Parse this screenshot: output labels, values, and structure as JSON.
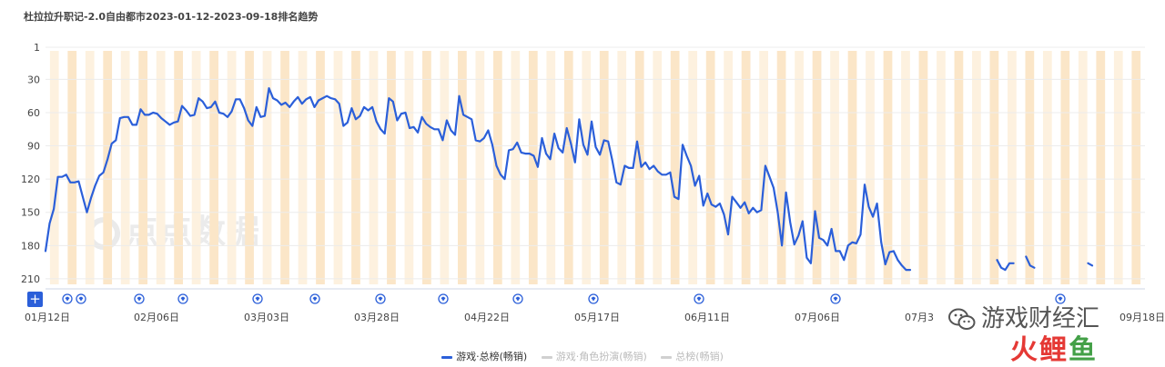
{
  "chart_data": {
    "type": "line",
    "title": "杜拉拉升职记-2.0自由都市2023-01-12-2023-09-18排名趋势",
    "y_ticks": [
      "1",
      "30",
      "60",
      "90",
      "120",
      "150",
      "180",
      "210"
    ],
    "ylim": [
      1,
      215
    ],
    "y_reversed": true,
    "x_ticks": [
      "01月12日",
      "02月06日",
      "03月03日",
      "03月28日",
      "04月22日",
      "05月17日",
      "06月11日",
      "07月06日",
      "07月3",
      "09月18日"
    ],
    "grid": true,
    "legend_position": "bottom",
    "series": [
      {
        "name": "游戏·总榜(畅销)",
        "color": "#2b5fd9",
        "active": true,
        "values": [
          185,
          160,
          147,
          118,
          118,
          116,
          123,
          123,
          122,
          136,
          150,
          137,
          126,
          117,
          114,
          102,
          88,
          85,
          65,
          64,
          64,
          71,
          71,
          57,
          62,
          62,
          60,
          61,
          65,
          68,
          71,
          69,
          68,
          54,
          58,
          63,
          62,
          47,
          50,
          56,
          55,
          50,
          60,
          61,
          64,
          59,
          48,
          48,
          56,
          67,
          72,
          55,
          64,
          63,
          38,
          47,
          49,
          53,
          51,
          55,
          50,
          46,
          52,
          48,
          46,
          55,
          49,
          47,
          45,
          47,
          48,
          52,
          72,
          69,
          56,
          66,
          63,
          55,
          58,
          55,
          68,
          75,
          79,
          47,
          50,
          67,
          61,
          60,
          74,
          73,
          78,
          64,
          70,
          73,
          75,
          75,
          85,
          67,
          76,
          80,
          45,
          62,
          64,
          66,
          85,
          86,
          83,
          76,
          89,
          108,
          116,
          120,
          94,
          93,
          87,
          96,
          97,
          97,
          99,
          109,
          83,
          97,
          102,
          79,
          92,
          96,
          74,
          88,
          105,
          66,
          89,
          98,
          68,
          91,
          98,
          85,
          86,
          103,
          123,
          125,
          108,
          110,
          110,
          86,
          109,
          105,
          111,
          108,
          113,
          116,
          116,
          114,
          136,
          138,
          89,
          99,
          108,
          126,
          117,
          144,
          133,
          143,
          145,
          142,
          152,
          170,
          136,
          141,
          146,
          141,
          151,
          146,
          150,
          148,
          108,
          118,
          128,
          150,
          180,
          132,
          159,
          179,
          171,
          158,
          191,
          196,
          149,
          173,
          175,
          180,
          165,
          185,
          185,
          193,
          180,
          177,
          178,
          170,
          125,
          145,
          154,
          142,
          177,
          197,
          186,
          185,
          193,
          198,
          202,
          202,
          null,
          null,
          null,
          null,
          null,
          null,
          null,
          null,
          null,
          null,
          null,
          null,
          null,
          null,
          null,
          null,
          null,
          null,
          null,
          null,
          193,
          200,
          202,
          196,
          196,
          null,
          null,
          190,
          198,
          200,
          null,
          null,
          null,
          null,
          null,
          null,
          null,
          null,
          null,
          null,
          null,
          null,
          196,
          198
        ]
      },
      {
        "name": "游戏·角色扮演(畅销)",
        "color": "#d0d0d0",
        "active": false,
        "values": []
      },
      {
        "name": "总榜(畅销)",
        "color": "#d0d0d0",
        "active": false,
        "values": []
      }
    ],
    "event_marker_icon": "diamond-icon",
    "marker_count": 13
  },
  "watermark": {
    "text": "点点数据"
  },
  "overlay": {
    "wechat_text": "游戏财经汇",
    "brand_part1": "火",
    "brand_part2": "鲤",
    "brand_part3": "鱼",
    "wechat_icon": "wechat-icon"
  },
  "controls": {
    "add_label": "+"
  }
}
